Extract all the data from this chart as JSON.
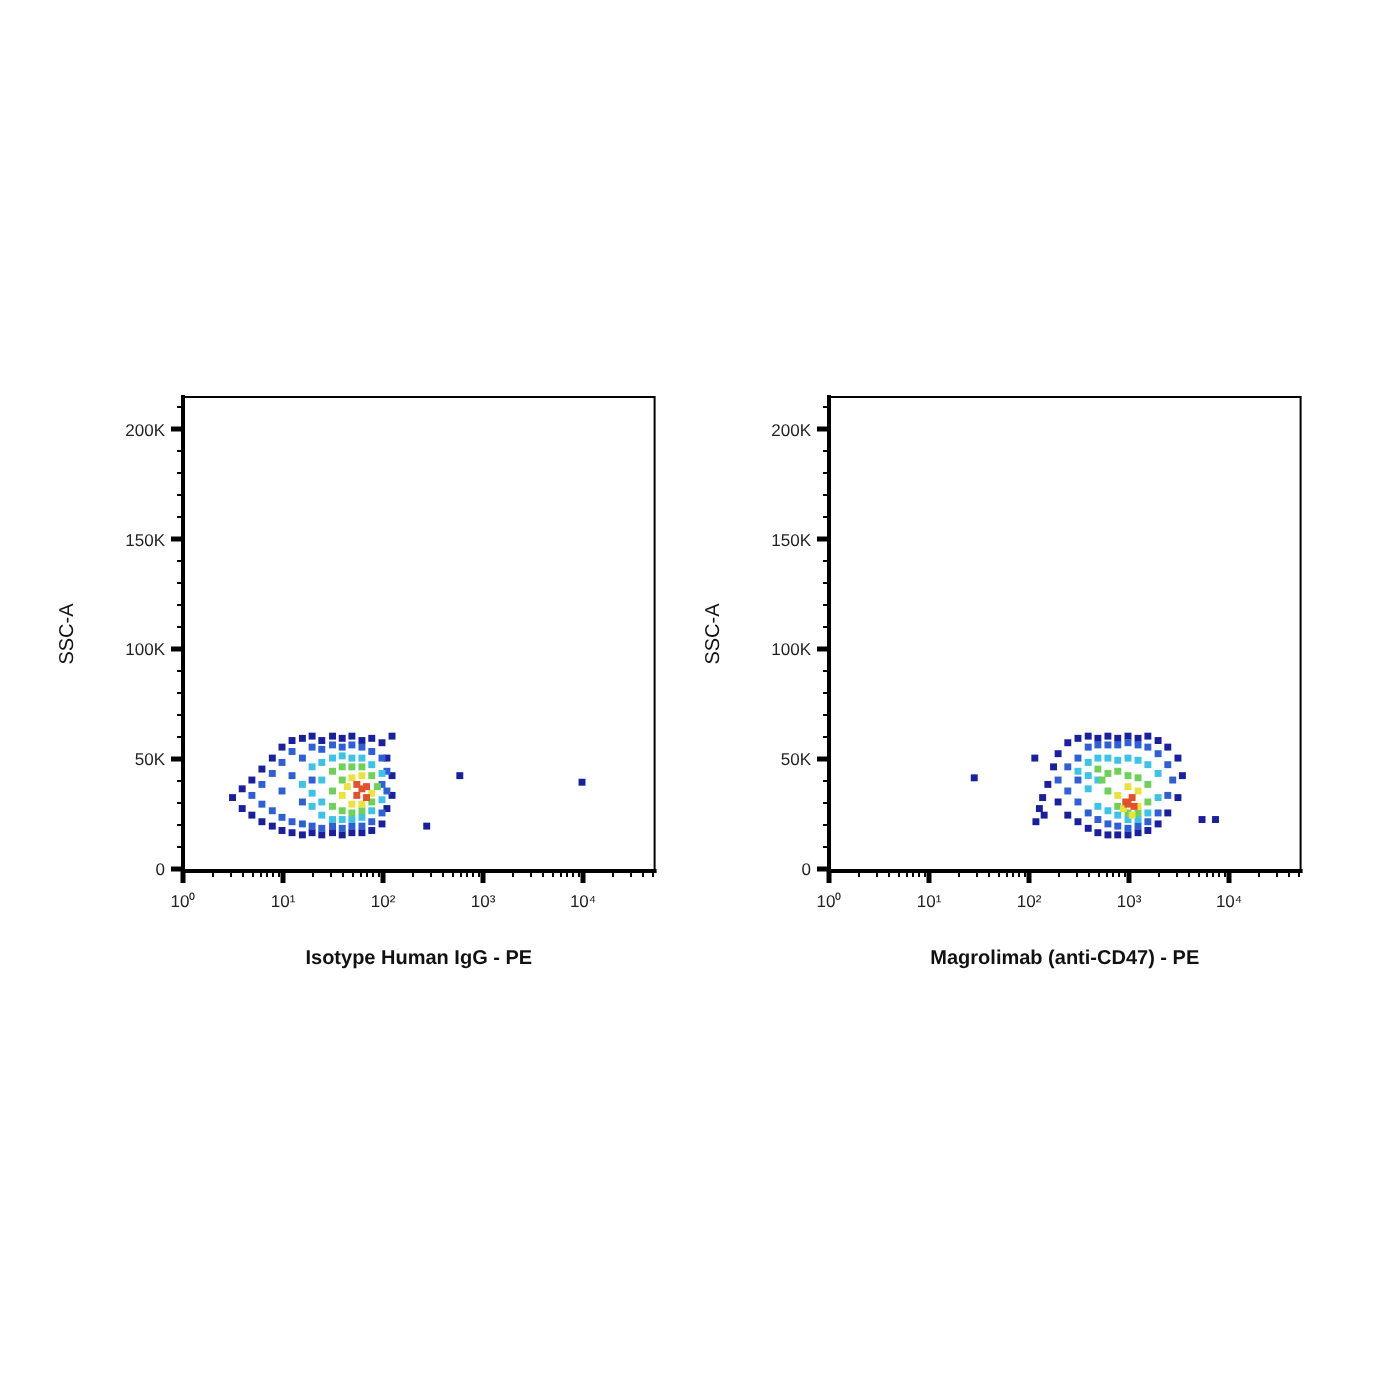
{
  "chart_data": [
    {
      "type": "scatter",
      "xlabel": "Isotype Human IgG - PE",
      "ylabel": "SSC-A",
      "log": "x",
      "marker": "square",
      "grid": false,
      "xlim": [
        1,
        52000
      ],
      "ylim": [
        -1000,
        215000
      ],
      "xticks": [
        {
          "value": 1,
          "label": "10⁰"
        },
        {
          "value": 2,
          "label": null
        },
        {
          "value": 3,
          "label": null
        },
        {
          "value": 4,
          "label": null
        },
        {
          "value": 5,
          "label": null
        },
        {
          "value": 6,
          "label": null
        },
        {
          "value": 7,
          "label": null
        },
        {
          "value": 8,
          "label": null
        },
        {
          "value": 9,
          "label": null
        },
        {
          "value": 10,
          "label": "10¹"
        },
        {
          "value": 20,
          "label": null
        },
        {
          "value": 30,
          "label": null
        },
        {
          "value": 40,
          "label": null
        },
        {
          "value": 50,
          "label": null
        },
        {
          "value": 60,
          "label": null
        },
        {
          "value": 70,
          "label": null
        },
        {
          "value": 80,
          "label": null
        },
        {
          "value": 90,
          "label": null
        },
        {
          "value": 100,
          "label": "10²"
        },
        {
          "value": 200,
          "label": null
        },
        {
          "value": 300,
          "label": null
        },
        {
          "value": 400,
          "label": null
        },
        {
          "value": 500,
          "label": null
        },
        {
          "value": 600,
          "label": null
        },
        {
          "value": 700,
          "label": null
        },
        {
          "value": 800,
          "label": null
        },
        {
          "value": 900,
          "label": null
        },
        {
          "value": 1000,
          "label": "10³"
        },
        {
          "value": 2000,
          "label": null
        },
        {
          "value": 3000,
          "label": null
        },
        {
          "value": 4000,
          "label": null
        },
        {
          "value": 5000,
          "label": null
        },
        {
          "value": 6000,
          "label": null
        },
        {
          "value": 7000,
          "label": null
        },
        {
          "value": 8000,
          "label": null
        },
        {
          "value": 9000,
          "label": null
        },
        {
          "value": 10000,
          "label": "10⁴"
        },
        {
          "value": 20000,
          "label": null
        },
        {
          "value": 30000,
          "label": null
        },
        {
          "value": 40000,
          "label": null
        },
        {
          "value": 50000,
          "label": null
        }
      ],
      "yticks": [
        0,
        {
          "value": 10000,
          "label": null
        },
        {
          "value": 20000,
          "label": null
        },
        {
          "value": 30000,
          "label": null
        },
        {
          "value": 40000,
          "label": null
        },
        {
          "value": 50000,
          "label": "50K"
        },
        {
          "value": 60000,
          "label": null
        },
        {
          "value": 70000,
          "label": null
        },
        {
          "value": 80000,
          "label": null
        },
        {
          "value": 90000,
          "label": null
        },
        {
          "value": 100000,
          "label": "100K"
        },
        {
          "value": 110000,
          "label": null
        },
        {
          "value": 120000,
          "label": null
        },
        {
          "value": 130000,
          "label": null
        },
        {
          "value": 140000,
          "label": null
        },
        {
          "value": 150000,
          "label": "150K"
        },
        {
          "value": 160000,
          "label": null
        },
        {
          "value": 170000,
          "label": null
        },
        {
          "value": 180000,
          "label": null
        },
        {
          "value": 190000,
          "label": null
        },
        {
          "value": 200000,
          "label": "200K"
        },
        {
          "value": 210000,
          "label": null
        }
      ],
      "series": [
        {
          "color": "#1a1f9e",
          "x": [
            3.2,
            4,
            4,
            5,
            5,
            6.3,
            6.3,
            8,
            8,
            10,
            10,
            12.6,
            12.6,
            16,
            16,
            20,
            20,
            25,
            25,
            32,
            32,
            40,
            40,
            50,
            50,
            63,
            63,
            79,
            79,
            100,
            100,
            112,
            126,
            126,
            112,
            126,
            280,
            600,
            10000
          ],
          "values": [
            32000,
            36000,
            27000,
            40000,
            24000,
            45000,
            21000,
            50000,
            19000,
            55000,
            17000,
            58000,
            16000,
            59000,
            15000,
            60000,
            16000,
            58000,
            15000,
            60000,
            16000,
            59000,
            15000,
            60000,
            16000,
            58000,
            16000,
            59000,
            17000,
            57000,
            20000,
            50000,
            60000,
            42000,
            27000,
            33000,
            19000,
            42000,
            39000
          ]
        },
        {
          "color": "#2f5fd6",
          "x": [
            5,
            6.3,
            6.3,
            8,
            8,
            10,
            10,
            10,
            12.6,
            12.6,
            12.6,
            16,
            16,
            16,
            20,
            20,
            20,
            25,
            25,
            32,
            32,
            40,
            40,
            50,
            50,
            63,
            63,
            79,
            79,
            100,
            100,
            100,
            112,
            112
          ],
          "values": [
            33000,
            29000,
            38000,
            26000,
            43000,
            23000,
            35000,
            48000,
            21000,
            42000,
            53000,
            20000,
            30000,
            50000,
            19000,
            55000,
            40000,
            18000,
            54000,
            19000,
            56000,
            18000,
            55000,
            19000,
            56000,
            19000,
            55000,
            21000,
            53000,
            25000,
            50000,
            38000,
            35000,
            44000
          ]
        },
        {
          "color": "#3cc3e6",
          "x": [
            16,
            20,
            20,
            20,
            25,
            25,
            25,
            32,
            32,
            40,
            40,
            50,
            50,
            63,
            63,
            79,
            79,
            100,
            100,
            25
          ],
          "values": [
            38000,
            28000,
            34000,
            46000,
            24000,
            30000,
            48000,
            22000,
            50000,
            22000,
            51000,
            22000,
            50000,
            23000,
            50000,
            26000,
            47000,
            31000,
            43000,
            40000
          ]
        },
        {
          "color": "#6fd05a",
          "x": [
            32,
            32,
            32,
            40,
            40,
            50,
            50,
            63,
            63,
            79,
            79,
            90,
            40
          ],
          "values": [
            28000,
            35000,
            44000,
            26000,
            46000,
            25000,
            46000,
            26000,
            46000,
            30000,
            42000,
            37000,
            40000
          ]
        },
        {
          "color": "#ece23e",
          "x": [
            40,
            50,
            50,
            63,
            63,
            79,
            45
          ],
          "values": [
            33000,
            29000,
            41000,
            29000,
            42000,
            34000,
            37000
          ]
        },
        {
          "color": "#e2512b",
          "x": [
            56,
            63,
            70,
            56,
            70
          ],
          "values": [
            33000,
            36000,
            32000,
            38000,
            37000
          ]
        }
      ]
    },
    {
      "type": "scatter",
      "xlabel": "Magrolimab (anti-CD47) - PE",
      "ylabel": "SSC-A",
      "log": "x",
      "marker": "square",
      "grid": false,
      "xlim": [
        1,
        52000
      ],
      "ylim": [
        -1000,
        215000
      ],
      "xticks": [
        {
          "value": 1,
          "label": "10⁰"
        },
        {
          "value": 2,
          "label": null
        },
        {
          "value": 3,
          "label": null
        },
        {
          "value": 4,
          "label": null
        },
        {
          "value": 5,
          "label": null
        },
        {
          "value": 6,
          "label": null
        },
        {
          "value": 7,
          "label": null
        },
        {
          "value": 8,
          "label": null
        },
        {
          "value": 9,
          "label": null
        },
        {
          "value": 10,
          "label": "10¹"
        },
        {
          "value": 20,
          "label": null
        },
        {
          "value": 30,
          "label": null
        },
        {
          "value": 40,
          "label": null
        },
        {
          "value": 50,
          "label": null
        },
        {
          "value": 60,
          "label": null
        },
        {
          "value": 70,
          "label": null
        },
        {
          "value": 80,
          "label": null
        },
        {
          "value": 90,
          "label": null
        },
        {
          "value": 100,
          "label": "10²"
        },
        {
          "value": 200,
          "label": null
        },
        {
          "value": 300,
          "label": null
        },
        {
          "value": 400,
          "label": null
        },
        {
          "value": 500,
          "label": null
        },
        {
          "value": 600,
          "label": null
        },
        {
          "value": 700,
          "label": null
        },
        {
          "value": 800,
          "label": null
        },
        {
          "value": 900,
          "label": null
        },
        {
          "value": 1000,
          "label": "10³"
        },
        {
          "value": 2000,
          "label": null
        },
        {
          "value": 3000,
          "label": null
        },
        {
          "value": 4000,
          "label": null
        },
        {
          "value": 5000,
          "label": null
        },
        {
          "value": 6000,
          "label": null
        },
        {
          "value": 7000,
          "label": null
        },
        {
          "value": 8000,
          "label": null
        },
        {
          "value": 9000,
          "label": null
        },
        {
          "value": 10000,
          "label": "10⁴"
        },
        {
          "value": 20000,
          "label": null
        },
        {
          "value": 30000,
          "label": null
        },
        {
          "value": 40000,
          "label": null
        },
        {
          "value": 50000,
          "label": null
        }
      ],
      "yticks": [
        0,
        {
          "value": 10000,
          "label": null
        },
        {
          "value": 20000,
          "label": null
        },
        {
          "value": 30000,
          "label": null
        },
        {
          "value": 40000,
          "label": null
        },
        {
          "value": 50000,
          "label": "50K"
        },
        {
          "value": 60000,
          "label": null
        },
        {
          "value": 70000,
          "label": null
        },
        {
          "value": 80000,
          "label": null
        },
        {
          "value": 90000,
          "label": null
        },
        {
          "value": 100000,
          "label": "100K"
        },
        {
          "value": 110000,
          "label": null
        },
        {
          "value": 120000,
          "label": null
        },
        {
          "value": 130000,
          "label": null
        },
        {
          "value": 140000,
          "label": null
        },
        {
          "value": 150000,
          "label": "150K"
        },
        {
          "value": 160000,
          "label": null
        },
        {
          "value": 170000,
          "label": null
        },
        {
          "value": 180000,
          "label": null
        },
        {
          "value": 190000,
          "label": null
        },
        {
          "value": 200000,
          "label": "200K"
        },
        {
          "value": 210000,
          "label": null
        }
      ],
      "series": [
        {
          "color": "#1a1f9e",
          "x": [
            120,
            130,
            140,
            145,
            158,
            180,
            200,
            200,
            250,
            250,
            316,
            316,
            400,
            400,
            500,
            500,
            630,
            630,
            790,
            790,
            1000,
            1000,
            1260,
            1260,
            1580,
            1580,
            2000,
            2000,
            2500,
            2500,
            3160,
            3160,
            3500,
            29,
            117,
            5500,
            7500
          ],
          "values": [
            21000,
            27000,
            32000,
            24000,
            38000,
            46000,
            52000,
            30000,
            57000,
            24000,
            59000,
            21000,
            60000,
            18000,
            59000,
            16000,
            60000,
            15000,
            59000,
            15000,
            60000,
            15000,
            59000,
            16000,
            60000,
            17000,
            58000,
            20000,
            55000,
            25000,
            50000,
            32000,
            42000,
            41000,
            50000,
            22000,
            22000
          ]
        },
        {
          "color": "#2f5fd6",
          "x": [
            200,
            250,
            250,
            316,
            316,
            400,
            400,
            500,
            500,
            630,
            630,
            790,
            790,
            1000,
            1000,
            1260,
            1260,
            1580,
            1580,
            2000,
            2000,
            2500,
            2500,
            2800,
            316
          ],
          "values": [
            40000,
            35000,
            46000,
            30000,
            50000,
            25000,
            55000,
            22000,
            56000,
            20000,
            56000,
            19000,
            56000,
            18000,
            57000,
            19000,
            56000,
            21000,
            55000,
            25000,
            52000,
            33000,
            47000,
            40000,
            40000
          ]
        },
        {
          "color": "#3cc3e6",
          "x": [
            316,
            400,
            400,
            500,
            500,
            500,
            630,
            630,
            790,
            790,
            1000,
            1000,
            1260,
            1260,
            1580,
            1580,
            2000,
            2000,
            400
          ],
          "values": [
            44000,
            36000,
            48000,
            28000,
            50000,
            40000,
            26000,
            50000,
            24000,
            49000,
            22000,
            50000,
            22000,
            49000,
            25000,
            47000,
            32000,
            43000,
            42000
          ]
        },
        {
          "color": "#6fd05a",
          "x": [
            500,
            630,
            630,
            790,
            790,
            1000,
            1000,
            1260,
            1260,
            1580,
            1580,
            550
          ],
          "values": [
            45000,
            43000,
            35000,
            28000,
            44000,
            25000,
            42000,
            25000,
            41000,
            30000,
            38000,
            40000
          ]
        },
        {
          "color": "#ece23e",
          "x": [
            790,
            900,
            1000,
            1260,
            1260,
            1100
          ],
          "values": [
            33000,
            27000,
            37000,
            28000,
            35000,
            24000
          ]
        },
        {
          "color": "#e2512b",
          "x": [
            950,
            1100,
            1150,
            1000
          ],
          "values": [
            30000,
            32000,
            28000,
            29000
          ]
        }
      ]
    }
  ]
}
